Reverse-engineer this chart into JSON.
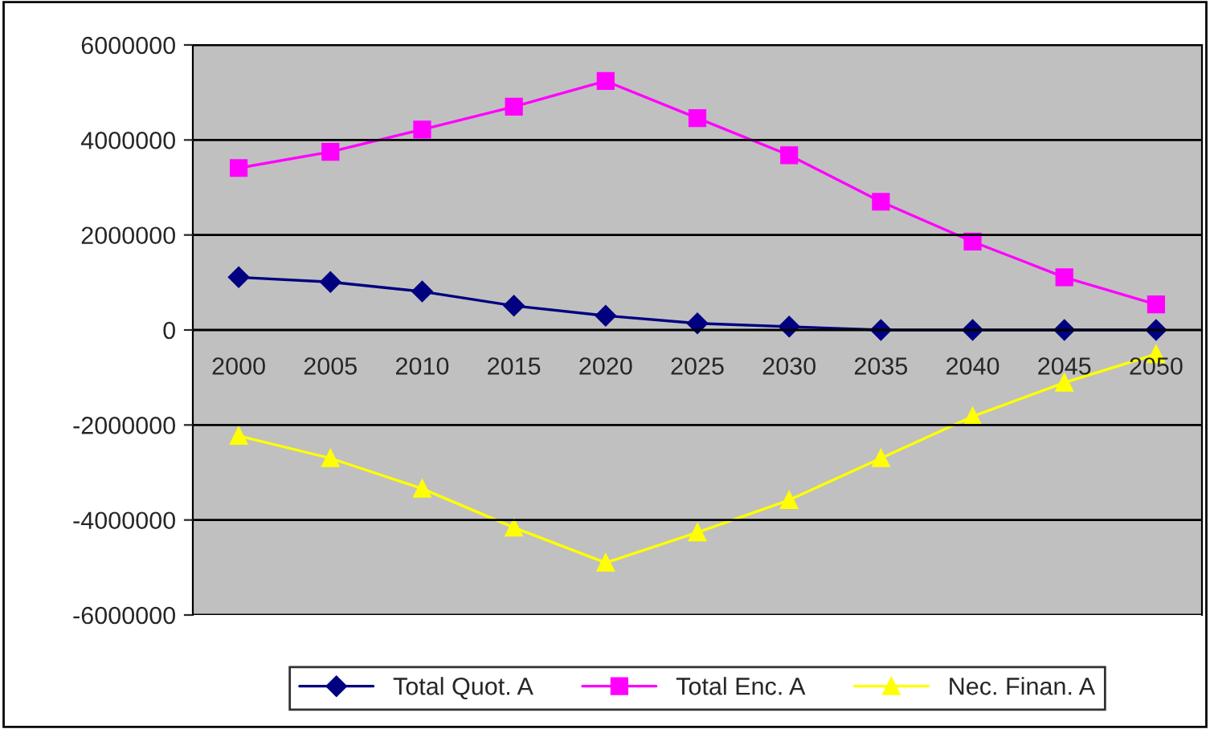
{
  "chart_data": {
    "type": "line",
    "categories": [
      "2000",
      "2005",
      "2010",
      "2015",
      "2020",
      "2025",
      "2030",
      "2035",
      "2040",
      "2045",
      "2050"
    ],
    "series": [
      {
        "name": "Total Quot. A",
        "color": "#000080",
        "marker": "diamond",
        "values": [
          1110000,
          1010000,
          810000,
          510000,
          300000,
          140000,
          70000,
          0,
          0,
          0,
          0
        ]
      },
      {
        "name": "Total Enc. A",
        "color": "#ff00ff",
        "marker": "square",
        "values": [
          3410000,
          3750000,
          4220000,
          4700000,
          5240000,
          4460000,
          3680000,
          2700000,
          1860000,
          1110000,
          540000
        ]
      },
      {
        "name": "Nec. Finan. A",
        "color": "#ffff00",
        "marker": "triangle",
        "values": [
          -2230000,
          -2700000,
          -3340000,
          -4160000,
          -4900000,
          -4260000,
          -3580000,
          -2700000,
          -1820000,
          -1110000,
          -510000
        ]
      }
    ],
    "ylim": [
      -6000000,
      6000000
    ],
    "yticks": [
      -6000000,
      -4000000,
      -2000000,
      0,
      2000000,
      4000000,
      6000000
    ],
    "grid": "y",
    "legend": "bottom",
    "line_style": "solid"
  }
}
